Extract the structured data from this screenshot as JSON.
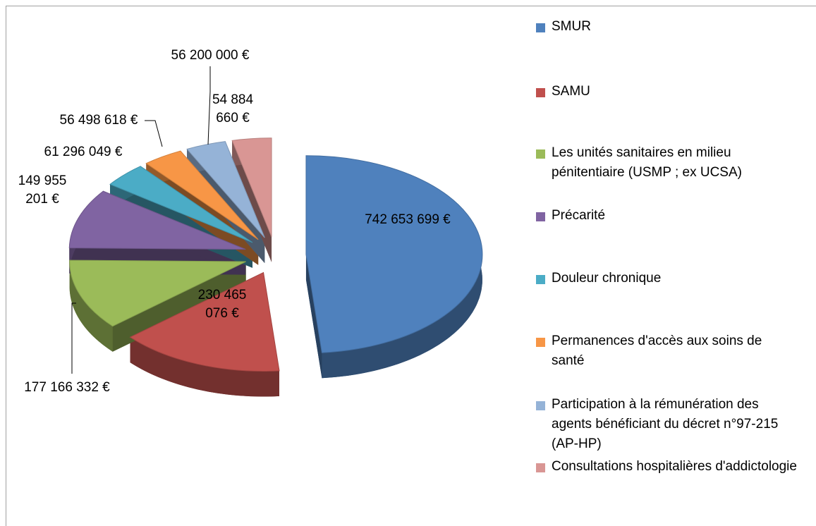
{
  "chart_data": {
    "type": "pie",
    "categories": [
      "SMUR",
      "SAMU",
      "Les unités sanitaires en milieu pénitentiaire (USMP ; ex UCSA)",
      "Précarité",
      "Douleur chronique",
      "Permanences d'accès aux soins de santé",
      "Participation à la rémunération des agents bénéficiant du décret n°97-215 (AP-HP)",
      "Consultations hospitalières d'addictologie"
    ],
    "values": [
      742653699,
      230465076,
      177166332,
      149955201,
      61296049,
      56498618,
      56200000,
      54884660
    ],
    "value_labels": [
      "742 653 699 €",
      "230 465 076 €",
      "177 166 332 €",
      "149 955 201 €",
      "61 296 049 €",
      "56 498 618 €",
      "56 200 000 €",
      "54 884 660 €"
    ],
    "colors": [
      "#4f81bd",
      "#c0504d",
      "#9bbb59",
      "#8064a2",
      "#4bacc6",
      "#f79646",
      "#95b3d7",
      "#d99694"
    ],
    "legend": "right"
  }
}
